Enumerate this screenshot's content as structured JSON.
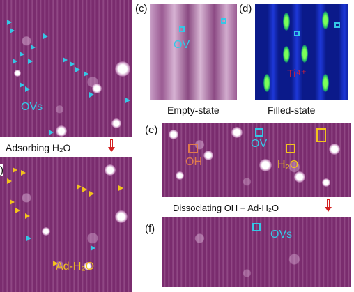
{
  "panel_labels": {
    "c": "(c)",
    "d": "(d)",
    "e": "(e)",
    "f": "(f)",
    "b_partial": ")"
  },
  "captions": {
    "c": "Empty-state",
    "d": "Filled-state",
    "adsorbing": "Adsorbing H₂O",
    "dissociating": "Dissociating OH + Ad-H₂O"
  },
  "annotations": {
    "a_ovs": "OVs",
    "b_adh2o": "Ad-H₂O",
    "c_ov": "OV",
    "d_ti": "Ti⁴⁺",
    "e_oh": "OH",
    "e_ov": "OV",
    "e_h2o": "H₂O",
    "f_ovs": "OVs"
  },
  "colors": {
    "stm_purple": "#7a2c6e",
    "marker_cyan": "#35c7e6",
    "marker_yellow": "#f2c21d",
    "marker_orange": "#e07a4c",
    "ti_label_red": "#d4203a",
    "arrow_red": "#d32020"
  }
}
